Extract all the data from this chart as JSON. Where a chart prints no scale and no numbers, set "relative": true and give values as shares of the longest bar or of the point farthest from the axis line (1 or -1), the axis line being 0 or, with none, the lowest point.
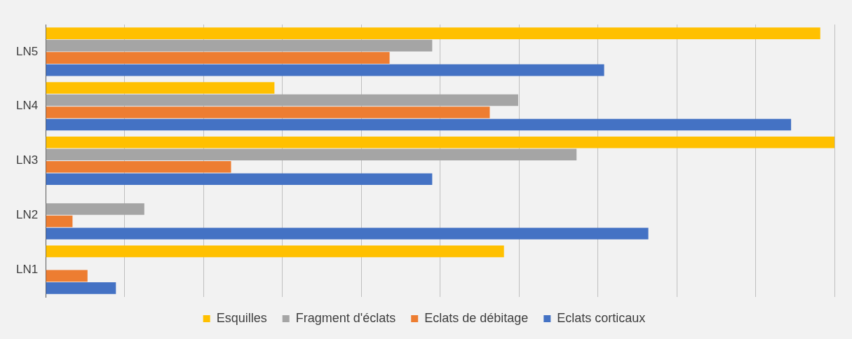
{
  "chart_data": {
    "type": "bar",
    "orientation": "horizontal",
    "relative": true,
    "categories": [
      "LN5",
      "LN4",
      "LN3",
      "LN2",
      "LN1"
    ],
    "series": [
      {
        "name": "Esquilles",
        "color": "#ffc000",
        "values": [
          0.982,
          0.29,
          1,
          0,
          0.581
        ]
      },
      {
        "name": "Fragment d'éclats",
        "color": "#a5a5a5",
        "values": [
          0.49,
          0.599,
          0.673,
          0.125,
          0
        ]
      },
      {
        "name": "Eclats de débitage",
        "color": "#ed7d31",
        "values": [
          0.436,
          0.563,
          0.235,
          0.034,
          0.053
        ]
      },
      {
        "name": "Eclats corticaux",
        "color": "#4472c4",
        "values": [
          0.708,
          0.945,
          0.49,
          0.764,
          0.089
        ]
      }
    ],
    "grid": "x",
    "legend": "bottom"
  }
}
